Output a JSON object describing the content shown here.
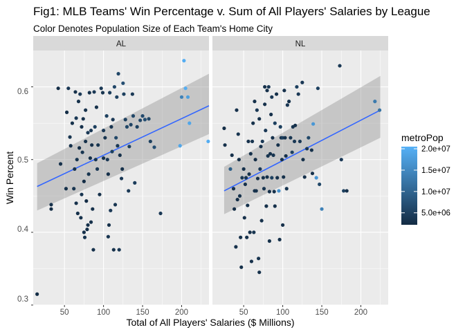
{
  "chart_data": {
    "type": "scatter",
    "title": "Fig1: MLB Teams' Win Percentage v. Sum of All Players' Salaries by League",
    "subtitle": "Color Denotes Population Size of Each Team's Home City",
    "xlabel": "Total of All Players' Salaries ($ Millions)",
    "ylabel": "Win Percent",
    "xlim": [
      10,
      235
    ],
    "ylim": [
      0.3,
      0.65
    ],
    "x_ticks": [
      50,
      100,
      150,
      200
    ],
    "y_ticks": [
      0.3,
      0.4,
      0.5,
      0.6
    ],
    "x_tick_labels": [
      "50",
      "100",
      "150",
      "200"
    ],
    "y_tick_labels": [
      "0.3",
      "0.4",
      "0.5",
      "0.6"
    ],
    "grid": true,
    "colors": {
      "panel_bg": "#ebebeb",
      "strip_bg": "#d9d9d9",
      "grid": "#ffffff",
      "fit_line": "#3366ff",
      "ribbon": "#999999",
      "color_low": "#132b43",
      "color_high": "#56b1f7"
    },
    "legend": {
      "title": "metroPop",
      "position": "right",
      "min": 2200000,
      "max": 20500000,
      "breaks": [
        5000000,
        10000000,
        15000000,
        20000000
      ],
      "break_labels": [
        "5.0e+06",
        "1.0e+07",
        "1.5e+07",
        "2.0e+07"
      ]
    },
    "panels": [
      {
        "label": "AL",
        "fit": {
          "x": [
            15,
            235
          ],
          "y": [
            0.463,
            0.574
          ],
          "lower": [
            0.43,
            0.535
          ],
          "upper": [
            0.495,
            0.618
          ]
        },
        "points": [
          [
            15,
            0.315,
            2500000.0
          ],
          [
            33,
            0.438,
            3000000.0
          ],
          [
            33,
            0.432,
            2500000.0
          ],
          [
            42,
            0.598,
            2500000.0
          ],
          [
            45,
            0.494,
            3000000.0
          ],
          [
            52,
            0.46,
            3000000.0
          ],
          [
            53,
            0.565,
            2600000.0
          ],
          [
            55,
            0.598,
            4000000.0
          ],
          [
            57,
            0.531,
            3500000.0
          ],
          [
            58,
            0.519,
            3000000.0
          ],
          [
            60,
            0.55,
            3000000.0
          ],
          [
            62,
            0.46,
            3500000.0
          ],
          [
            63,
            0.487,
            3000000.0
          ],
          [
            64,
            0.593,
            3000000.0
          ],
          [
            65,
            0.44,
            3000000.0
          ],
          [
            65,
            0.557,
            4000000.0
          ],
          [
            66,
            0.5,
            3500000.0
          ],
          [
            67,
            0.426,
            3000000.0
          ],
          [
            68,
            0.58,
            3000000.0
          ],
          [
            69,
            0.516,
            2500000.0
          ],
          [
            70,
            0.59,
            4000000.0
          ],
          [
            71,
            0.42,
            3000000.0
          ],
          [
            72,
            0.452,
            3500000.0
          ],
          [
            72,
            0.545,
            3000000.0
          ],
          [
            73,
            0.51,
            3500000.0
          ],
          [
            74,
            0.556,
            3000000.0
          ],
          [
            75,
            0.47,
            2500000.0
          ],
          [
            75,
            0.4,
            3000000.0
          ],
          [
            76,
            0.393,
            3500000.0
          ],
          [
            77,
            0.568,
            3000000.0
          ],
          [
            77,
            0.525,
            3000000.0
          ],
          [
            78,
            0.443,
            2500000.0
          ],
          [
            79,
            0.404,
            3000000.0
          ],
          [
            80,
            0.537,
            4000000.0
          ],
          [
            80,
            0.41,
            3000000.0
          ],
          [
            81,
            0.48,
            3500000.0
          ],
          [
            82,
            0.592,
            3000000.0
          ],
          [
            83,
            0.502,
            3000000.0
          ],
          [
            84,
            0.54,
            4000000.0
          ],
          [
            84,
            0.414,
            3000000.0
          ],
          [
            85,
            0.52,
            3000000.0
          ],
          [
            86,
            0.432,
            3000000.0
          ],
          [
            87,
            0.376,
            3000000.0
          ],
          [
            88,
            0.593,
            4000000.0
          ],
          [
            89,
            0.545,
            5000000.0
          ],
          [
            90,
            0.5,
            3500000.0
          ],
          [
            91,
            0.572,
            3000000.0
          ],
          [
            92,
            0.487,
            4000000.0
          ],
          [
            93,
            0.52,
            3500000.0
          ],
          [
            95,
            0.452,
            3000000.0
          ],
          [
            97,
            0.598,
            4000000.0
          ],
          [
            99,
            0.592,
            3500000.0
          ],
          [
            100,
            0.54,
            4000000.0
          ],
          [
            100,
            0.502,
            3000000.0
          ],
          [
            102,
            0.53,
            3500000.0
          ],
          [
            104,
            0.56,
            5000000.0
          ],
          [
            105,
            0.5,
            4000000.0
          ],
          [
            106,
            0.48,
            3000000.0
          ],
          [
            106,
            0.394,
            3500000.0
          ],
          [
            107,
            0.41,
            3000000.0
          ],
          [
            108,
            0.592,
            4500000.0
          ],
          [
            109,
            0.43,
            4000000.0
          ],
          [
            110,
            0.545,
            3500000.0
          ],
          [
            111,
            0.511,
            5000000.0
          ],
          [
            112,
            0.555,
            4000000.0
          ],
          [
            113,
            0.376,
            3000000.0
          ],
          [
            114,
            0.6,
            6000000.0
          ],
          [
            115,
            0.438,
            3500000.0
          ],
          [
            116,
            0.53,
            6000000.0
          ],
          [
            117,
            0.586,
            5000000.0
          ],
          [
            118,
            0.519,
            4000000.0
          ],
          [
            119,
            0.618,
            6000000.0
          ],
          [
            120,
            0.376,
            4000000.0
          ],
          [
            121,
            0.506,
            3000000.0
          ],
          [
            123,
            0.474,
            4000000.0
          ],
          [
            124,
            0.487,
            3000000.0
          ],
          [
            125,
            0.605,
            7000000.0
          ],
          [
            126,
            0.59,
            5000000.0
          ],
          [
            128,
            0.555,
            5000000.0
          ],
          [
            130,
            0.545,
            6000000.0
          ],
          [
            132,
            0.457,
            4000000.0
          ],
          [
            133,
            0.518,
            5000000.0
          ],
          [
            135,
            0.548,
            5500000.0
          ],
          [
            137,
            0.59,
            4000000.0
          ],
          [
            138,
            0.56,
            6000000.0
          ],
          [
            140,
            0.468,
            4500000.0
          ],
          [
            143,
            0.545,
            5000000.0
          ],
          [
            147,
            0.554,
            6000000.0
          ],
          [
            150,
            0.56,
            6500000.0
          ],
          [
            153,
            0.555,
            7000000.0
          ],
          [
            158,
            0.556,
            6000000.0
          ],
          [
            160,
            0.525,
            5000000.0
          ],
          [
            165,
            0.517,
            7000000.0
          ],
          [
            173,
            0.426,
            4000000.0
          ],
          [
            198,
            0.519,
            19000000.0
          ],
          [
            200,
            0.586,
            14000000.0
          ],
          [
            203,
            0.636,
            20000000.0
          ],
          [
            205,
            0.598,
            20000000.0
          ],
          [
            208,
            0.586,
            18000000.0
          ],
          [
            210,
            0.55,
            19000000.0
          ],
          [
            234,
            0.525,
            20000000.0
          ]
        ]
      },
      {
        "label": "NL",
        "fit": {
          "x": [
            25,
            225
          ],
          "y": [
            0.457,
            0.568
          ],
          "lower": [
            0.425,
            0.53
          ],
          "upper": [
            0.49,
            0.615
          ]
        },
        "points": [
          [
            25,
            0.543,
            2500000.0
          ],
          [
            26,
            0.52,
            3000000.0
          ],
          [
            33,
            0.487,
            9000000.0
          ],
          [
            35,
            0.506,
            3000000.0
          ],
          [
            37,
            0.46,
            3000000.0
          ],
          [
            38,
            0.432,
            2500000.0
          ],
          [
            40,
            0.38,
            3000000.0
          ],
          [
            41,
            0.568,
            3000000.0
          ],
          [
            42,
            0.445,
            2600000.0
          ],
          [
            43,
            0.535,
            3500000.0
          ],
          [
            44,
            0.5,
            3000000.0
          ],
          [
            45,
            0.45,
            3000000.0
          ],
          [
            46,
            0.393,
            3000000.0
          ],
          [
            47,
            0.352,
            3000000.0
          ],
          [
            48,
            0.475,
            4000000.0
          ],
          [
            50,
            0.487,
            3000000.0
          ],
          [
            51,
            0.42,
            3000000.0
          ],
          [
            52,
            0.466,
            3000000.0
          ],
          [
            53,
            0.475,
            3500000.0
          ],
          [
            54,
            0.393,
            3000000.0
          ],
          [
            55,
            0.437,
            3000000.0
          ],
          [
            56,
            0.525,
            3000000.0
          ],
          [
            57,
            0.48,
            3000000.0
          ],
          [
            58,
            0.4,
            3000000.0
          ],
          [
            59,
            0.508,
            3000000.0
          ],
          [
            60,
            0.36,
            3000000.0
          ],
          [
            61,
            0.525,
            3500000.0
          ],
          [
            62,
            0.55,
            3000000.0
          ],
          [
            63,
            0.4,
            3500000.0
          ],
          [
            64,
            0.58,
            3000000.0
          ],
          [
            64,
            0.457,
            3000000.0
          ],
          [
            65,
            0.5,
            2500000.0
          ],
          [
            66,
            0.457,
            3000000.0
          ],
          [
            67,
            0.568,
            4000000.0
          ],
          [
            68,
            0.474,
            3000000.0
          ],
          [
            69,
            0.364,
            3500000.0
          ],
          [
            70,
            0.345,
            3000000.0
          ],
          [
            70,
            0.556,
            3000000.0
          ],
          [
            71,
            0.487,
            4000000.0
          ],
          [
            72,
            0.518,
            3000000.0
          ],
          [
            73,
            0.416,
            3000000.0
          ],
          [
            74,
            0.525,
            4000000.0
          ],
          [
            75,
            0.475,
            3000000.0
          ],
          [
            76,
            0.46,
            3500000.0
          ],
          [
            77,
            0.6,
            3000000.0
          ],
          [
            77,
            0.576,
            3000000.0
          ],
          [
            78,
            0.54,
            4000000.0
          ],
          [
            79,
            0.436,
            3000000.0
          ],
          [
            80,
            0.595,
            3000000.0
          ],
          [
            80,
            0.476,
            3000000.0
          ],
          [
            81,
            0.505,
            3500000.0
          ],
          [
            82,
            0.6,
            4000000.0
          ],
          [
            83,
            0.456,
            3000000.0
          ],
          [
            83,
            0.388,
            3000000.0
          ],
          [
            84,
            0.508,
            3000000.0
          ],
          [
            85,
            0.562,
            3000000.0
          ],
          [
            86,
            0.586,
            4000000.0
          ],
          [
            86,
            0.475,
            5000000.0
          ],
          [
            87,
            0.53,
            3000000.0
          ],
          [
            88,
            0.506,
            3500000.0
          ],
          [
            89,
            0.456,
            3000000.0
          ],
          [
            90,
            0.55,
            5000000.0
          ],
          [
            90,
            0.436,
            3000000.0
          ],
          [
            92,
            0.59,
            3000000.0
          ],
          [
            93,
            0.475,
            3000000.0
          ],
          [
            94,
            0.52,
            3000000.0
          ],
          [
            95,
            0.457,
            16000000.0
          ],
          [
            96,
            0.39,
            3000000.0
          ],
          [
            97,
            0.545,
            5000000.0
          ],
          [
            98,
            0.53,
            3000000.0
          ],
          [
            99,
            0.5,
            3000000.0
          ],
          [
            100,
            0.53,
            5000000.0
          ],
          [
            100,
            0.41,
            3000000.0
          ],
          [
            101,
            0.476,
            3000000.0
          ],
          [
            102,
            0.595,
            3000000.0
          ],
          [
            103,
            0.53,
            3000000.0
          ],
          [
            104,
            0.505,
            3000000.0
          ],
          [
            105,
            0.46,
            3500000.0
          ],
          [
            106,
            0.575,
            4000000.0
          ],
          [
            108,
            0.58,
            3000000.0
          ],
          [
            110,
            0.53,
            3500000.0
          ],
          [
            112,
            0.51,
            5000000.0
          ],
          [
            113,
            0.545,
            3500000.0
          ],
          [
            115,
            0.525,
            4000000.0
          ],
          [
            116,
            0.547,
            3000000.0
          ],
          [
            118,
            0.6,
            5000000.0
          ],
          [
            120,
            0.59,
            4000000.0
          ],
          [
            122,
            0.525,
            4000000.0
          ],
          [
            125,
            0.606,
            4000000.0
          ],
          [
            126,
            0.5,
            3000000.0
          ],
          [
            128,
            0.476,
            3000000.0
          ],
          [
            131,
            0.515,
            4000000.0
          ],
          [
            133,
            0.53,
            6000000.0
          ],
          [
            137,
            0.513,
            3000000.0
          ],
          [
            138,
            0.481,
            3000000.0
          ],
          [
            139,
            0.549,
            17000000.0
          ],
          [
            143,
            0.475,
            17000000.0
          ],
          [
            145,
            0.598,
            5000000.0
          ],
          [
            147,
            0.466,
            6000000.0
          ],
          [
            150,
            0.432,
            14000000.0
          ],
          [
            173,
            0.629,
            4000000.0
          ],
          [
            175,
            0.5,
            4000000.0
          ],
          [
            178,
            0.457,
            5000000.0
          ],
          [
            182,
            0.457,
            3000000.0
          ],
          [
            218,
            0.58,
            13000000.0
          ],
          [
            224,
            0.568,
            12000000.0
          ]
        ]
      }
    ]
  }
}
